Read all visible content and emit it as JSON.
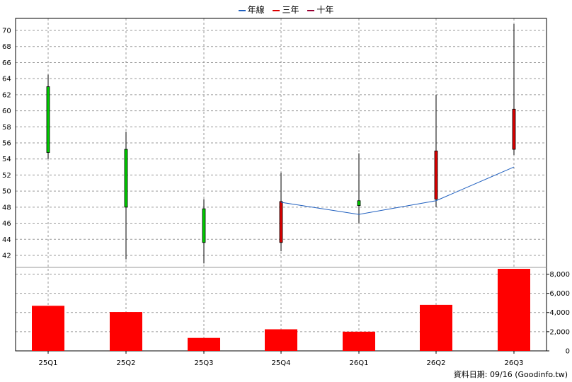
{
  "legend": {
    "items": [
      {
        "label": "年線",
        "color": "#1f5fbf"
      },
      {
        "label": "三年",
        "color": "#dd0000"
      },
      {
        "label": "十年",
        "color": "#990033"
      }
    ]
  },
  "footer": {
    "text": "資料日期: 09/16  (Goodinfo.tw)"
  },
  "colors": {
    "up": "#dd0000",
    "down": "#00cc00",
    "volume": "#ff0000",
    "grid": "#999999",
    "year_line": "#1f5fbf"
  },
  "chart_data": [
    {
      "type": "candlestick",
      "categories": [
        "25Q1",
        "25Q2",
        "25Q3",
        "25Q4",
        "26Q1",
        "26Q2",
        "26Q3"
      ],
      "candles": [
        {
          "open": 63.0,
          "high": 64.5,
          "low": 54.0,
          "close": 54.8
        },
        {
          "open": 55.2,
          "high": 57.4,
          "low": 41.5,
          "close": 48.0
        },
        {
          "open": 47.8,
          "high": 49.0,
          "low": 41.0,
          "close": 43.6
        },
        {
          "open": 43.6,
          "high": 52.3,
          "low": 42.5,
          "close": 48.7
        },
        {
          "open": 48.8,
          "high": 54.7,
          "low": 46.0,
          "close": 48.2
        },
        {
          "open": 49.0,
          "high": 62.0,
          "low": 48.0,
          "close": 55.0
        },
        {
          "open": 55.2,
          "high": 70.8,
          "low": 54.5,
          "close": 60.2
        }
      ],
      "year_line": {
        "x": [
          "25Q4",
          "26Q1",
          "26Q2",
          "26Q3"
        ],
        "values": [
          48.6,
          47.1,
          48.8,
          53.0
        ]
      },
      "ylim": [
        40.5,
        71.5
      ],
      "yticks": [
        42,
        44,
        46,
        48,
        50,
        52,
        54,
        56,
        58,
        60,
        62,
        64,
        66,
        68,
        70
      ],
      "grid": true
    },
    {
      "type": "bar",
      "categories": [
        "25Q1",
        "25Q2",
        "25Q3",
        "25Q4",
        "26Q1",
        "26Q2",
        "26Q3"
      ],
      "values": [
        4700,
        4050,
        1350,
        2250,
        2000,
        4800,
        8550
      ],
      "ylim": [
        0,
        8700
      ],
      "yticks": [
        0,
        2000,
        4000,
        6000,
        8000
      ],
      "ytick_labels": [
        "0",
        "2,000",
        "4,000",
        "6,000",
        "8,000"
      ],
      "grid": true
    }
  ]
}
